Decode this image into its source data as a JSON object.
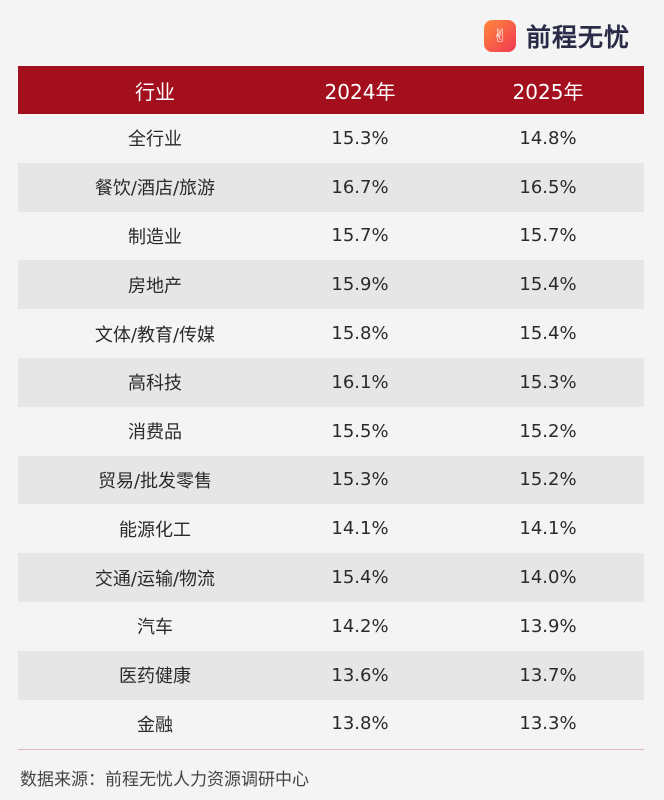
{
  "brand": {
    "name": "前程无忧",
    "logo_color": "#f0364f"
  },
  "header_color": "#a30f1d",
  "chart_data": {
    "type": "table",
    "columns": [
      "行业",
      "2024年",
      "2025年"
    ],
    "rows": [
      [
        "全行业",
        "15.3%",
        "14.8%"
      ],
      [
        "餐饮/酒店/旅游",
        "16.7%",
        "16.5%"
      ],
      [
        "制造业",
        "15.7%",
        "15.7%"
      ],
      [
        "房地产",
        "15.9%",
        "15.4%"
      ],
      [
        "文体/教育/传媒",
        "15.8%",
        "15.4%"
      ],
      [
        "高科技",
        "16.1%",
        "15.3%"
      ],
      [
        "消费品",
        "15.5%",
        "15.2%"
      ],
      [
        "贸易/批发零售",
        "15.3%",
        "15.2%"
      ],
      [
        "能源化工",
        "14.1%",
        "14.1%"
      ],
      [
        "交通/运输/物流",
        "15.4%",
        "14.0%"
      ],
      [
        "汽车",
        "14.2%",
        "13.9%"
      ],
      [
        "医药健康",
        "13.6%",
        "13.7%"
      ],
      [
        "金融",
        "13.8%",
        "13.3%"
      ]
    ]
  },
  "footer": {
    "source": "数据来源：前程无忧人力资源调研中心"
  }
}
